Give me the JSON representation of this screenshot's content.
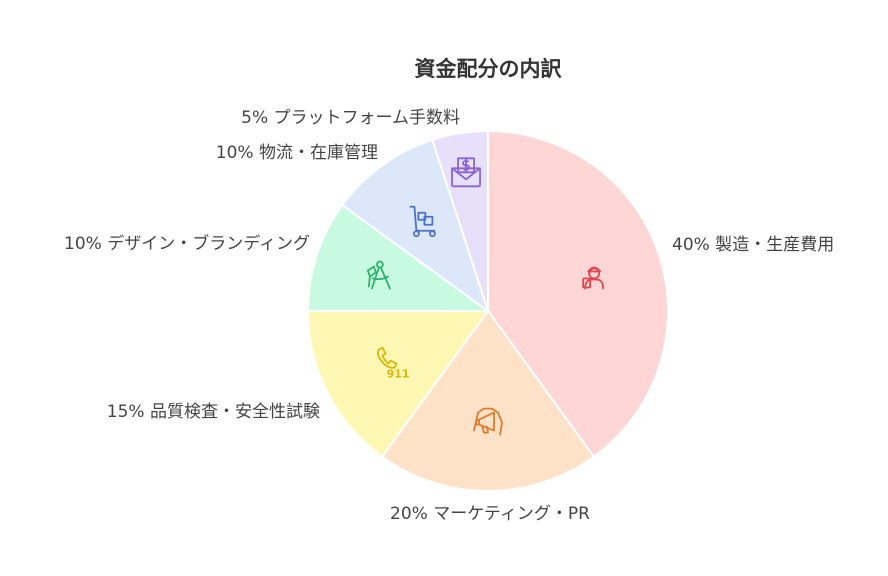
{
  "chart_data": {
    "type": "pie",
    "title": "資金配分の内訳",
    "slices": [
      {
        "label": "40% 製造・生産費用",
        "value": 40,
        "color": "#FFD6D6",
        "icon": "engineer-icon",
        "icon_color": "#E0484E"
      },
      {
        "label": "20% マーケティング・PR",
        "value": 20,
        "color": "#FFE2C8",
        "icon": "megaphone-icon",
        "icon_color": "#E07B2C"
      },
      {
        "label": "15% 品質検査・安全性試験",
        "value": 15,
        "color": "#FFF7B3",
        "icon": "phone-911-icon",
        "icon_color": "#D9B800"
      },
      {
        "label": "10% デザイン・ブランディング",
        "value": 10,
        "color": "#C7FAE0",
        "icon": "drafting-compass-icon",
        "icon_color": "#2EB36B"
      },
      {
        "label": "10% 物流・在庫管理",
        "value": 10,
        "color": "#DCE7FA",
        "icon": "hand-truck-icon",
        "icon_color": "#4A72C8"
      },
      {
        "label": "5% プラットフォーム手数料",
        "value": 5,
        "color": "#E7E0FA",
        "icon": "dollar-envelope-icon",
        "icon_color": "#8A63D2"
      }
    ],
    "start_angle_deg": 0,
    "direction": "clockwise",
    "legend": "none"
  }
}
